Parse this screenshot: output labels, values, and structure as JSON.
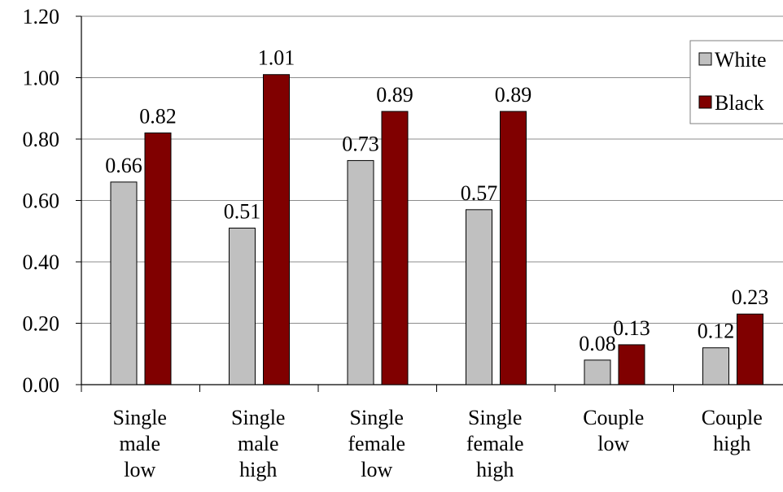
{
  "chart_data": {
    "type": "bar",
    "categories": [
      [
        "Single",
        "male",
        "low"
      ],
      [
        "Single",
        "male",
        "high"
      ],
      [
        "Single",
        "female",
        "low"
      ],
      [
        "Single",
        "female",
        "high"
      ],
      [
        "Couple",
        "low"
      ],
      [
        "Couple",
        "high"
      ]
    ],
    "series": [
      {
        "name": "White",
        "color": "#c0c0c0",
        "values": [
          0.66,
          0.51,
          0.73,
          0.57,
          0.08,
          0.12
        ],
        "labels": [
          "0.66",
          "0.51",
          "0.73",
          "0.57",
          "0.08",
          "0.12"
        ]
      },
      {
        "name": "Black",
        "color": "#800000",
        "values": [
          0.82,
          1.01,
          0.89,
          0.89,
          0.13,
          0.23
        ],
        "labels": [
          "0.82",
          "1.01",
          "0.89",
          "0.89",
          "0.13",
          "0.23"
        ]
      }
    ],
    "ylim": [
      0,
      1.2
    ],
    "yticks": [
      "0.00",
      "0.20",
      "0.40",
      "0.60",
      "0.80",
      "1.00",
      "1.20"
    ],
    "grid": true,
    "legend": "top-right",
    "title": "",
    "xlabel": "",
    "ylabel": ""
  }
}
